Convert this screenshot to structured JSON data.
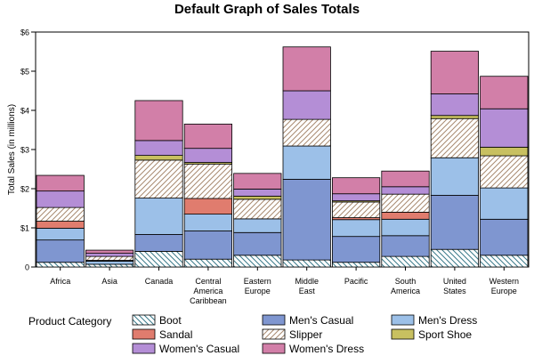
{
  "chart_data": {
    "type": "bar",
    "stacked": true,
    "title": "Default Graph of Sales Totals",
    "xlabel": "",
    "ylabel": "Total Sales (in millions)",
    "ylim": [
      0,
      6
    ],
    "yticks": [
      "0",
      "$1",
      "$2",
      "$3",
      "$4",
      "$5",
      "$6"
    ],
    "categories": [
      [
        "Africa"
      ],
      [
        "Asia"
      ],
      [
        "Canada"
      ],
      [
        "Central",
        "America",
        "Caribbean"
      ],
      [
        "Eastern",
        "Europe"
      ],
      [
        "Middle",
        "East"
      ],
      [
        "Pacific"
      ],
      [
        "South",
        "America"
      ],
      [
        "United",
        "States"
      ],
      [
        "Western",
        "Europe"
      ]
    ],
    "series": [
      {
        "name": "Boot",
        "fill": "hatch-back",
        "color": "#ffffff",
        "values": [
          0.12,
          0.07,
          0.4,
          0.2,
          0.3,
          0.18,
          0.12,
          0.27,
          0.45,
          0.3
        ]
      },
      {
        "name": "Men's Casual",
        "fill": "solid",
        "color": "#7f96d0",
        "values": [
          0.57,
          0.0,
          0.43,
          0.72,
          0.58,
          2.06,
          0.66,
          0.53,
          1.38,
          0.92
        ]
      },
      {
        "name": "Men's Dress",
        "fill": "solid",
        "color": "#9cc0e8",
        "values": [
          0.3,
          0.08,
          0.93,
          0.43,
          0.35,
          0.85,
          0.43,
          0.42,
          0.96,
          0.8
        ]
      },
      {
        "name": "Sandal",
        "fill": "solid",
        "color": "#e07c6e",
        "values": [
          0.18,
          0.02,
          0.0,
          0.4,
          0.0,
          0.0,
          0.05,
          0.18,
          0.0,
          0.0
        ]
      },
      {
        "name": "Slipper",
        "fill": "hatch-fwd",
        "color": "#ffffff",
        "values": [
          0.35,
          0.1,
          0.97,
          0.88,
          0.5,
          0.68,
          0.4,
          0.46,
          1.0,
          0.82
        ]
      },
      {
        "name": "Sport Shoe",
        "fill": "solid",
        "color": "#c8c060",
        "values": [
          0.0,
          0.0,
          0.12,
          0.04,
          0.08,
          0.0,
          0.03,
          0.0,
          0.08,
          0.22
        ]
      },
      {
        "name": "Women's Casual",
        "fill": "solid",
        "color": "#b48ed6",
        "values": [
          0.42,
          0.08,
          0.38,
          0.36,
          0.18,
          0.73,
          0.18,
          0.19,
          0.55,
          0.98
        ]
      },
      {
        "name": "Women's Dress",
        "fill": "solid",
        "color": "#d27fa8",
        "values": [
          0.4,
          0.08,
          1.02,
          0.62,
          0.4,
          1.12,
          0.41,
          0.4,
          1.09,
          0.83
        ]
      }
    ],
    "legend": {
      "title": "Product Category",
      "placement": "bottom",
      "columns": 3
    },
    "grid": false
  }
}
